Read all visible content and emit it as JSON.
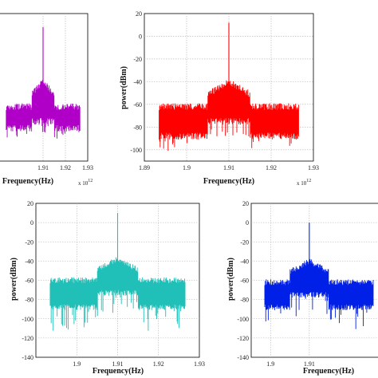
{
  "chart_data": [
    {
      "id": "tl",
      "type": "line",
      "color": "#b000c8",
      "xlabel": "Frequency(Hz)",
      "ylabel": "",
      "x_multiplier": "x 10",
      "x_multiplier_exp": "12",
      "xlim": [
        1.89,
        1.93
      ],
      "ylim": [
        -110,
        20
      ],
      "xticks": [
        "1.91",
        "1.92",
        "1.93"
      ],
      "xtick_values": [
        1.91,
        1.92,
        1.93
      ],
      "yticks": [],
      "grid": true,
      "series": [
        {
          "x_range": [
            1.8935,
            1.9265
          ],
          "plateau_dbm": -62,
          "skirt_dbm": -78,
          "noise_floor_dbm": -90,
          "peak_dbm": 8,
          "peak_x": 1.91,
          "shoulder_x": [
            1.905,
            1.915
          ]
        }
      ]
    },
    {
      "id": "tr",
      "type": "line",
      "color": "#ff0000",
      "xlabel": "Frequency(Hz)",
      "ylabel": "power(dBm)",
      "x_multiplier": "x 10",
      "x_multiplier_exp": "12",
      "xlim": [
        1.89,
        1.93
      ],
      "ylim": [
        -110,
        20
      ],
      "xticks": [
        "1.89",
        "1.9",
        "1.91",
        "1.92",
        "1.93"
      ],
      "xtick_values": [
        1.89,
        1.9,
        1.91,
        1.92,
        1.93
      ],
      "yticks": [
        "20",
        "0",
        "-20",
        "-40",
        "-60",
        "-80",
        "-100"
      ],
      "ytick_values": [
        20,
        0,
        -20,
        -40,
        -60,
        -80,
        -100
      ],
      "grid": true,
      "series": [
        {
          "x_range": [
            1.8935,
            1.9265
          ],
          "plateau_dbm": -62,
          "skirt_dbm": -85,
          "noise_floor_dbm": -100,
          "peak_dbm": 12,
          "peak_x": 1.91,
          "shoulder_x": [
            1.905,
            1.915
          ]
        }
      ]
    },
    {
      "id": "bl",
      "type": "line",
      "color": "#20c0b8",
      "xlabel": "Frequency(Hz)",
      "ylabel": "power(dBm)",
      "x_multiplier": "",
      "x_multiplier_exp": "",
      "xlim": [
        1.89,
        1.93
      ],
      "ylim": [
        -140,
        20
      ],
      "xticks": [
        "1.9",
        "1.91",
        "1.92",
        "1.93"
      ],
      "xtick_values": [
        1.9,
        1.91,
        1.92,
        1.93
      ],
      "yticks": [
        "20",
        "0",
        "-20",
        "-40",
        "-60",
        "-80",
        "-100",
        "-120",
        "-140"
      ],
      "ytick_values": [
        20,
        0,
        -20,
        -40,
        -60,
        -80,
        -100,
        -120,
        -140
      ],
      "grid": true,
      "series": [
        {
          "x_range": [
            1.8935,
            1.9265
          ],
          "plateau_dbm": -60,
          "skirt_dbm": -85,
          "noise_floor_dbm": -110,
          "peak_dbm": 10,
          "peak_x": 1.91,
          "shoulder_x": [
            1.905,
            1.915
          ]
        }
      ]
    },
    {
      "id": "br",
      "type": "line",
      "color": "#0020e8",
      "xlabel": "Frequency(Hz)",
      "ylabel": "power(dBm)",
      "x_multiplier": "",
      "x_multiplier_exp": "",
      "xlim": [
        1.895,
        1.93
      ],
      "ylim": [
        -140,
        20
      ],
      "xticks": [
        "1.9",
        "1.91"
      ],
      "xtick_values": [
        1.9,
        1.91
      ],
      "yticks": [
        "20",
        "0",
        "-20",
        "-40",
        "-60",
        "-80",
        "-100",
        "-120",
        "-140"
      ],
      "ytick_values": [
        20,
        0,
        -20,
        -40,
        -60,
        -80,
        -100,
        -120,
        -140
      ],
      "grid": true,
      "series": [
        {
          "x_range": [
            1.8985,
            1.9265
          ],
          "plateau_dbm": -62,
          "skirt_dbm": -85,
          "noise_floor_dbm": -110,
          "peak_dbm": 0,
          "peak_x": 1.91,
          "shoulder_x": [
            1.905,
            1.915
          ]
        }
      ]
    }
  ]
}
